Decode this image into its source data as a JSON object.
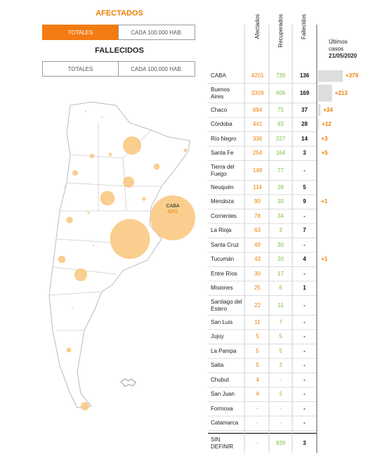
{
  "afectados_title": "AFECTADOS",
  "afectados_toggle": [
    "TOTALES",
    "CADA 100.000 HAB."
  ],
  "fallecidos_title": "FALLECIDOS",
  "fallecidos_toggle": [
    "TOTALES",
    "CADA 100.000 HAB."
  ],
  "table": {
    "headers": [
      "Afectados",
      "Recuperados",
      "Fallecidos"
    ],
    "ultimos_header": "Últimos casos",
    "ultimos_date": "21/05/2020",
    "rows": [
      {
        "name": "CABA",
        "afectados": 4201,
        "recuperados": 739,
        "fallecidos": 136,
        "ultimos": {
          "value": 379,
          "label": "+379"
        }
      },
      {
        "name": "Buenos Aires",
        "afectados": 3309,
        "recuperados": 606,
        "fallecidos": 169,
        "ultimos": {
          "value": 213,
          "label": "+213"
        }
      },
      {
        "name": "Chaco",
        "afectados": 694,
        "recuperados": 75,
        "fallecidos": 37,
        "ultimos": {
          "value": 34,
          "label": "+34"
        }
      },
      {
        "name": "Córdoba",
        "afectados": 441,
        "recuperados": 93,
        "fallecidos": 28,
        "ultimos": {
          "value": 12,
          "label": "+12"
        }
      },
      {
        "name": "Río Negro",
        "afectados": 336,
        "recuperados": 227,
        "fallecidos": 14,
        "ultimos": {
          "value": 3,
          "label": "+3"
        }
      },
      {
        "name": "Santa Fe",
        "afectados": 254,
        "recuperados": 164,
        "fallecidos": 3,
        "ultimos": {
          "value": 5,
          "label": "+5"
        }
      },
      {
        "name": "Tierra del Fuego",
        "afectados": 148,
        "recuperados": 77,
        "fallecidos": "-"
      },
      {
        "name": "Neuquén",
        "afectados": 114,
        "recuperados": 39,
        "fallecidos": 5
      },
      {
        "name": "Mendoza",
        "afectados": 90,
        "recuperados": 30,
        "fallecidos": 9,
        "ultimos": {
          "value": 1,
          "label": "+1"
        }
      },
      {
        "name": "Corrientes",
        "afectados": 78,
        "recuperados": 34,
        "fallecidos": "-"
      },
      {
        "name": "La Rioja",
        "afectados": 63,
        "recuperados": 3,
        "fallecidos": 7
      },
      {
        "name": "Santa Cruz",
        "afectados": 49,
        "recuperados": 30,
        "fallecidos": "-"
      },
      {
        "name": "Tucumán",
        "afectados": 43,
        "recuperados": 20,
        "fallecidos": 4,
        "ultimos": {
          "value": 1,
          "label": "+1"
        }
      },
      {
        "name": "Entre Ríos",
        "afectados": 30,
        "recuperados": 17,
        "fallecidos": "-"
      },
      {
        "name": "Misiones",
        "afectados": 25,
        "recuperados": 6,
        "fallecidos": 1
      },
      {
        "name": "Santiago del Estero",
        "afectados": 22,
        "recuperados": 11,
        "fallecidos": "-"
      },
      {
        "name": "San Luis",
        "afectados": 11,
        "recuperados": 7,
        "fallecidos": "-"
      },
      {
        "name": "Jujuy",
        "afectados": 5,
        "recuperados": 5,
        "fallecidos": "-"
      },
      {
        "name": "La Pampa",
        "afectados": 5,
        "recuperados": 5,
        "fallecidos": "-"
      },
      {
        "name": "Salta",
        "afectados": 5,
        "recuperados": 3,
        "fallecidos": "-"
      },
      {
        "name": "Chubut",
        "afectados": 4,
        "recuperados": "-",
        "fallecidos": "-"
      },
      {
        "name": "San Juan",
        "afectados": 4,
        "recuperados": 2,
        "fallecidos": "-"
      },
      {
        "name": "Formosa",
        "afectados": "-",
        "recuperados": "-",
        "fallecidos": "-"
      },
      {
        "name": "Catamarca",
        "afectados": "-",
        "recuperados": "-",
        "fallecidos": "-"
      },
      {
        "name": "SIN DEFINIR",
        "afectados": "-",
        "recuperados": 839,
        "fallecidos": 3
      }
    ]
  }
}
